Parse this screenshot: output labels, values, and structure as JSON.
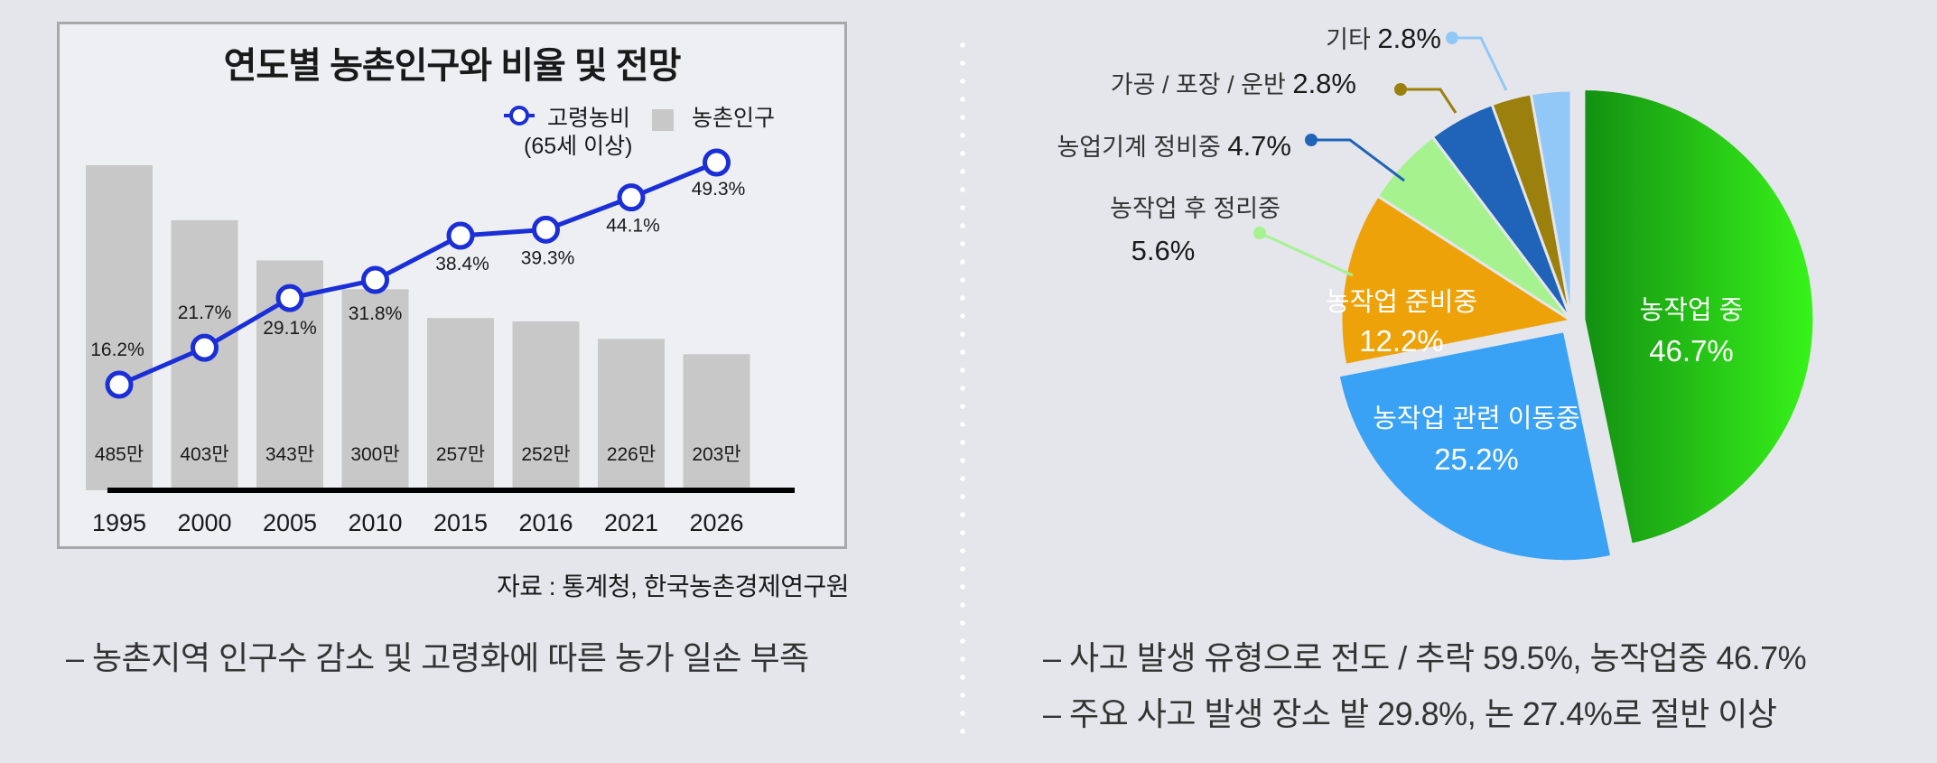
{
  "left_panel": {
    "title": "연도별 농촌인구와 비율 및 전망",
    "legend": {
      "line_label": "고령농비",
      "line_sublabel": "(65세 이상)",
      "bar_label": "농촌인구"
    },
    "source": "자료 : 통계청, 한국농촌경제연구원",
    "note": "– 농촌지역 인구수 감소 및 고령화에 따른 농가 일손 부족"
  },
  "right_panel": {
    "notes": [
      "– 사고 발생 유형으로 전도 / 추락 59.5%, 농작업중 46.7%",
      "– 주요 사고 발생 장소 밭 29.8%, 논 27.4%로 절반 이상"
    ]
  },
  "colors": {
    "bar": "#c8c8c8",
    "line": "#1a2fd6",
    "baseline": "#000000",
    "pie_field": [
      "#1e9e12",
      "#3aa2f4",
      "#eea20a",
      "#a6f28f",
      "#1f64b8",
      "#9c800e",
      "#92c8f7"
    ]
  },
  "chart_data": [
    {
      "type": "bar",
      "categories": [
        "1995",
        "2000",
        "2005",
        "2010",
        "2015",
        "2016",
        "2021",
        "2026"
      ],
      "series": [
        {
          "name": "농촌인구",
          "values": [
            485,
            403,
            343,
            300,
            257,
            252,
            226,
            203
          ],
          "labels": [
            "485만",
            "403만",
            "343만",
            "300만",
            "257만",
            "252만",
            "226만",
            "203만"
          ]
        },
        {
          "name": "고령농비",
          "type": "line",
          "values": [
            16.2,
            21.7,
            29.1,
            31.8,
            38.4,
            39.3,
            44.1,
            49.3
          ],
          "labels": [
            "16.2%",
            "21.7%",
            "29.1%",
            "31.8%",
            "38.4%",
            "39.3%",
            "44.1%",
            "49.3%"
          ]
        }
      ],
      "title": "연도별 농촌인구와 비율 및 전망",
      "grid": false,
      "legend_position": "top-right"
    },
    {
      "type": "pie",
      "slices": [
        {
          "label": "농작업 중",
          "value": 46.7,
          "value_label": "46.7%",
          "color": "#1e9e12",
          "exploded": true
        },
        {
          "label": "농작업 관련 이동중",
          "value": 25.2,
          "value_label": "25.2%",
          "color": "#3aa2f4",
          "exploded": true
        },
        {
          "label": "농작업 준비중",
          "value": 12.2,
          "value_label": "12.2%",
          "color": "#eea20a",
          "exploded": false
        },
        {
          "label": "농작업 후 정리중",
          "value": 5.6,
          "value_label": "5.6%",
          "color": "#a6f28f",
          "exploded": false
        },
        {
          "label": "농업기계 정비중",
          "value": 4.7,
          "value_label": "4.7%",
          "color": "#1f64b8",
          "exploded": false
        },
        {
          "label": "가공 / 포장 / 운반",
          "value": 2.8,
          "value_label": "2.8%",
          "color": "#9c800e",
          "exploded": false
        },
        {
          "label": "기타",
          "value": 2.8,
          "value_label": "2.8%",
          "color": "#92c8f7",
          "exploded": false
        }
      ]
    }
  ]
}
